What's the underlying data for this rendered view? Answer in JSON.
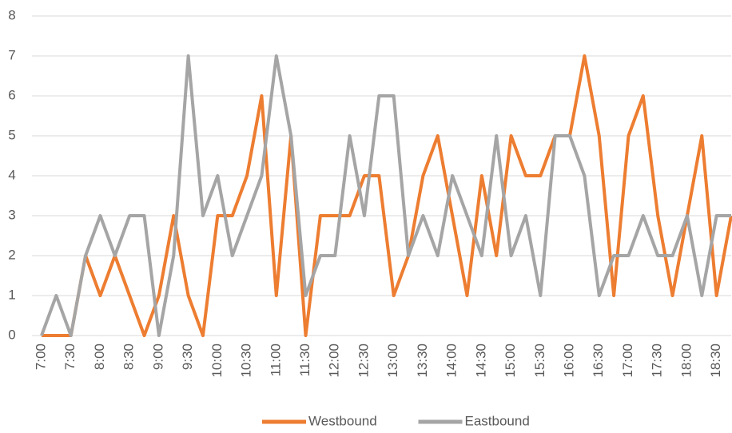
{
  "chart_data": {
    "type": "line",
    "categories": [
      "7:00",
      null,
      "7:30",
      null,
      "8:00",
      null,
      "8:30",
      null,
      "9:00",
      null,
      "9:30",
      null,
      "10:00",
      null,
      "10:30",
      null,
      "11:00",
      null,
      "11:30",
      null,
      "12:00",
      null,
      "12:30",
      null,
      "13:00",
      null,
      "13:30",
      null,
      "14:00",
      null,
      "14:30",
      null,
      "15:00",
      null,
      "15:30",
      null,
      "16:00",
      null,
      "16:30",
      null,
      "17:00",
      null,
      "17:30",
      null,
      "18:00",
      null,
      "18:30",
      null
    ],
    "series": [
      {
        "name": "Westbound",
        "color": "#ed7d31",
        "values": [
          0,
          0,
          0,
          2,
          1,
          2,
          1,
          0,
          1,
          3,
          1,
          0,
          3,
          3,
          4,
          6,
          1,
          5,
          0,
          3,
          3,
          3,
          4,
          4,
          1,
          2,
          4,
          5,
          3,
          1,
          4,
          2,
          5,
          4,
          4,
          5,
          5,
          7,
          5,
          1,
          5,
          6,
          3,
          1,
          3,
          5,
          1,
          3
        ]
      },
      {
        "name": "Eastbound",
        "color": "#a5a5a5",
        "values": [
          0,
          1,
          0,
          2,
          3,
          2,
          3,
          3,
          0,
          2,
          7,
          3,
          4,
          2,
          3,
          4,
          7,
          5,
          1,
          2,
          2,
          5,
          3,
          6,
          6,
          2,
          3,
          2,
          4,
          3,
          2,
          5,
          2,
          3,
          1,
          5,
          5,
          4,
          1,
          2,
          2,
          3,
          2,
          2,
          3,
          1,
          3,
          3
        ]
      }
    ],
    "ylim": [
      0,
      8
    ],
    "yticks": [
      0,
      1,
      2,
      3,
      4,
      5,
      6,
      7,
      8
    ],
    "grid": true,
    "legend": "bottom"
  }
}
